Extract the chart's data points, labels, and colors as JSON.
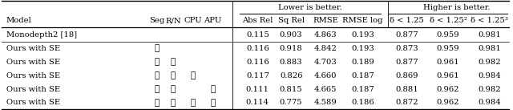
{
  "figsize": [
    6.4,
    1.37
  ],
  "dpi": 100,
  "header_row1": [
    "Lower is better.",
    "Higher is better."
  ],
  "header_row2": [
    "Model",
    "Seg",
    "R/N",
    "CPU",
    "APU",
    "Abs Rel",
    "Sq Rel",
    "RMSE",
    "RMSE log",
    "δ < 1.25",
    "δ < 1.25²",
    "δ < 1.25³"
  ],
  "rows": [
    [
      "Monodepth2 [18]",
      "",
      "",
      "",
      "",
      "0.115",
      "0.903",
      "4.863",
      "0.193",
      "0.877",
      "0.959",
      "0.981"
    ],
    [
      "Ours with SE",
      "✓",
      "",
      "",
      "",
      "0.116",
      "0.918",
      "4.842",
      "0.193",
      "0.873",
      "0.959",
      "0.981"
    ],
    [
      "Ours with SE",
      "✓",
      "✓",
      "",
      "",
      "0.116",
      "0.883",
      "4.703",
      "0.189",
      "0.877",
      "0.961",
      "0.982"
    ],
    [
      "Ours with SE",
      "✓",
      "✓",
      "✓",
      "",
      "0.117",
      "0.826",
      "4.660",
      "0.187",
      "0.869",
      "0.961",
      "0.984"
    ],
    [
      "Ours with SE",
      "✓",
      "✓",
      "",
      "✓",
      "0.111",
      "0.815",
      "4.665",
      "0.187",
      "0.881",
      "0.962",
      "0.982"
    ],
    [
      "Ours with SE",
      "✓",
      "✓",
      "✓",
      "✓",
      "0.114",
      "0.775",
      "4.589",
      "0.186",
      "0.872",
      "0.962",
      "0.984"
    ]
  ],
  "background_color": "#ffffff"
}
